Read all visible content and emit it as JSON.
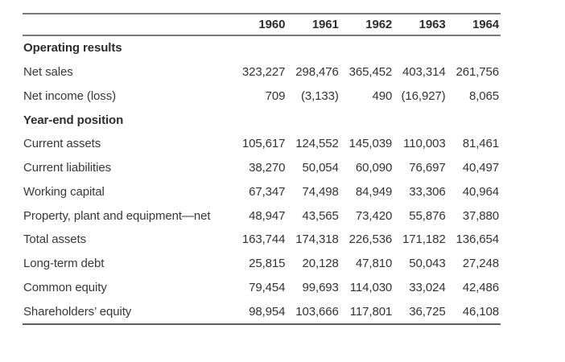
{
  "colors": {
    "background": "#ffffff",
    "text": "#333333",
    "section_text": "#2e2e2e",
    "rule_top": "#7a7a7a",
    "rule_header": "#7a7a7a",
    "rule_bottom": "#5f5f5f"
  },
  "table": {
    "header": {
      "years": [
        "1960",
        "1961",
        "1962",
        "1963",
        "1964"
      ]
    },
    "rows": [
      {
        "type": "section",
        "label": "Operating results",
        "values": [
          "",
          "",
          "",
          "",
          ""
        ]
      },
      {
        "type": "data",
        "label": "Net sales",
        "values": [
          "323,227",
          "298,476",
          "365,452",
          "403,314",
          "261,756"
        ]
      },
      {
        "type": "data",
        "label": "Net income (loss)",
        "values": [
          "709",
          "(3,133)",
          "490",
          "(16,927)",
          "8,065"
        ]
      },
      {
        "type": "section",
        "label": "Year-end position",
        "values": [
          "",
          "",
          "",
          "",
          ""
        ]
      },
      {
        "type": "data",
        "label": "Current assets",
        "values": [
          "105,617",
          "124,552",
          "145,039",
          "110,003",
          "81,461"
        ]
      },
      {
        "type": "data",
        "label": "Current liabilities",
        "values": [
          "38,270",
          "50,054",
          "60,090",
          "76,697",
          "40,497"
        ]
      },
      {
        "type": "data",
        "label": "Working capital",
        "values": [
          "67,347",
          "74,498",
          "84,949",
          "33,306",
          "40,964"
        ]
      },
      {
        "type": "data",
        "label": "Property, plant and equipment—net",
        "values": [
          "48,947",
          "43,565",
          "73,420",
          "55,876",
          "37,880"
        ]
      },
      {
        "type": "data",
        "label": "Total assets",
        "values": [
          "163,744",
          "174,318",
          "226,536",
          "171,182",
          "136,654"
        ]
      },
      {
        "type": "data",
        "label": "Long-term debt",
        "values": [
          "25,815",
          "20,128",
          "47,810",
          "50,043",
          "27,248"
        ]
      },
      {
        "type": "data",
        "label": "Common equity",
        "values": [
          "79,454",
          "99,693",
          "114,030",
          "33,024",
          "42,486"
        ]
      },
      {
        "type": "data",
        "label": "Shareholders’ equity",
        "values": [
          "98,954",
          "103,666",
          "117,801",
          "36,725",
          "46,108"
        ]
      }
    ]
  }
}
